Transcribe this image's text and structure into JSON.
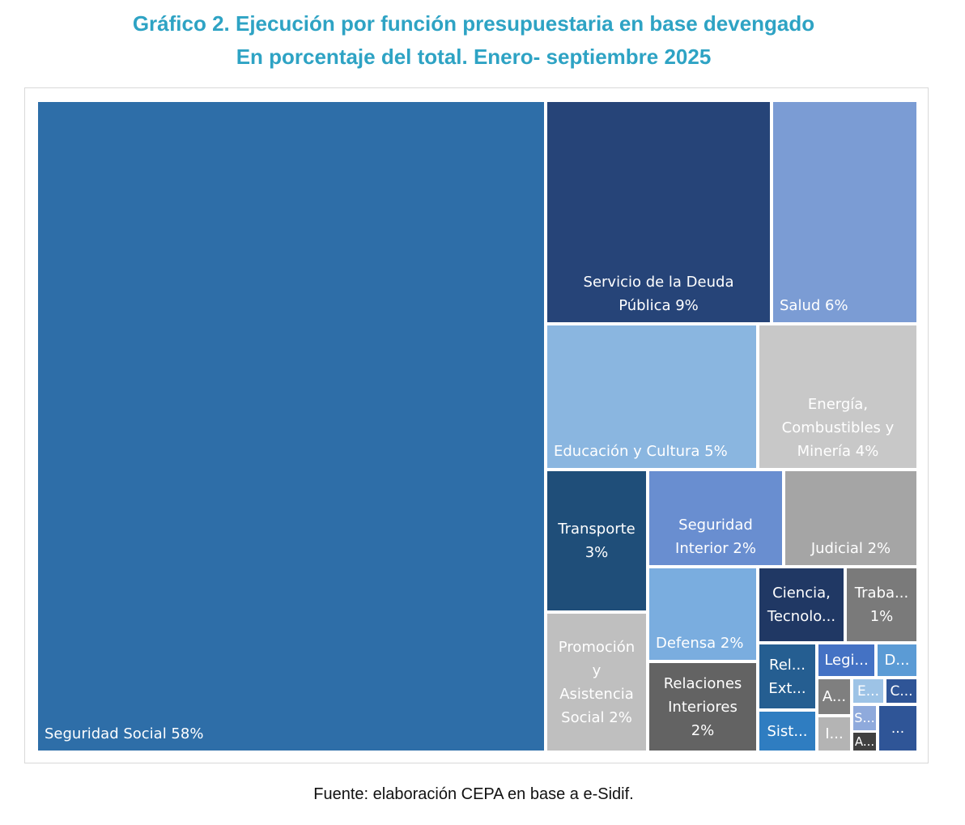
{
  "title_line1": "Gráfico 2. Ejecución por función presupuestaria en base devengado",
  "title_line2": "En porcentaje del total. Enero- septiembre 2025",
  "source": "Fuente: elaboración CEPA en base a e-Sidif.",
  "chart_data": {
    "type": "treemap",
    "title": "Gráfico 2. Ejecución por función presupuestaria en base devengado",
    "subtitle": "En porcentaje del total. Enero- septiembre 2025",
    "unit": "%",
    "items": [
      {
        "label": "Seguridad Social 58%",
        "name": "Seguridad Social",
        "value": 58,
        "color": "#2E6EA8"
      },
      {
        "label": "Servicio de la Deuda\nPública 9%",
        "name": "Servicio de la Deuda Pública",
        "value": 9,
        "color": "#264478"
      },
      {
        "label": "Salud 6%",
        "name": "Salud",
        "value": 6,
        "color": "#7B9CD4"
      },
      {
        "label": "Educación y Cultura 5%",
        "name": "Educación y Cultura",
        "value": 5,
        "color": "#8AB6E0"
      },
      {
        "label": "Energía,\nCombustibles y\nMinería 4%",
        "name": "Energía, Combustibles y Minería",
        "value": 4,
        "color": "#C8C8C8"
      },
      {
        "label": "Transporte\n3%",
        "name": "Transporte",
        "value": 3,
        "color": "#1F4E79"
      },
      {
        "label": "Seguridad\nInterior 2%",
        "name": "Seguridad Interior",
        "value": 2,
        "color": "#698ED0"
      },
      {
        "label": "Judicial 2%",
        "name": "Judicial",
        "value": 2,
        "color": "#A5A5A5"
      },
      {
        "label": "Promoción\ny\nAsistencia\nSocial 2%",
        "name": "Promoción y Asistencia Social",
        "value": 2,
        "color": "#BFBFBF"
      },
      {
        "label": "Defensa 2%",
        "name": "Defensa",
        "value": 2,
        "color": "#7AADDF"
      },
      {
        "label": "Relaciones\nInteriores\n2%",
        "name": "Relaciones Interiores",
        "value": 2,
        "color": "#636363"
      },
      {
        "label": "Ciencia,\nTecnolo...",
        "name": "Ciencia, Tecnolo...",
        "value": null,
        "color": "#203864"
      },
      {
        "label": "Traba...\n1%",
        "name": "Traba...",
        "value": 1,
        "color": "#7A7A7A"
      },
      {
        "label": "Rel...\nExt...",
        "name": "Rel... Ext...",
        "value": null,
        "color": "#255E91"
      },
      {
        "label": "Sist...",
        "name": "Sist...",
        "value": null,
        "color": "#2F7DC1"
      },
      {
        "label": "Legi...",
        "name": "Legi...",
        "value": null,
        "color": "#4472C4"
      },
      {
        "label": "D...",
        "name": "D...",
        "value": null,
        "color": "#5B9BD5"
      },
      {
        "label": "A...",
        "name": "A...",
        "value": null,
        "color": "#7F7F7F"
      },
      {
        "label": "I...",
        "name": "I...",
        "value": null,
        "color": "#B4B4B4"
      },
      {
        "label": "E...",
        "name": "E...",
        "value": null,
        "color": "#9DC3E6"
      },
      {
        "label": "C...",
        "name": "C...",
        "value": null,
        "color": "#2F5597"
      },
      {
        "label": "S...",
        "name": "S...",
        "value": null,
        "color": "#8FAADC"
      },
      {
        "label": "A...",
        "name": "A...",
        "value": null,
        "color": "#404040"
      },
      {
        "label": "...",
        "name": "...",
        "value": null,
        "color": "#2F5597"
      }
    ]
  }
}
